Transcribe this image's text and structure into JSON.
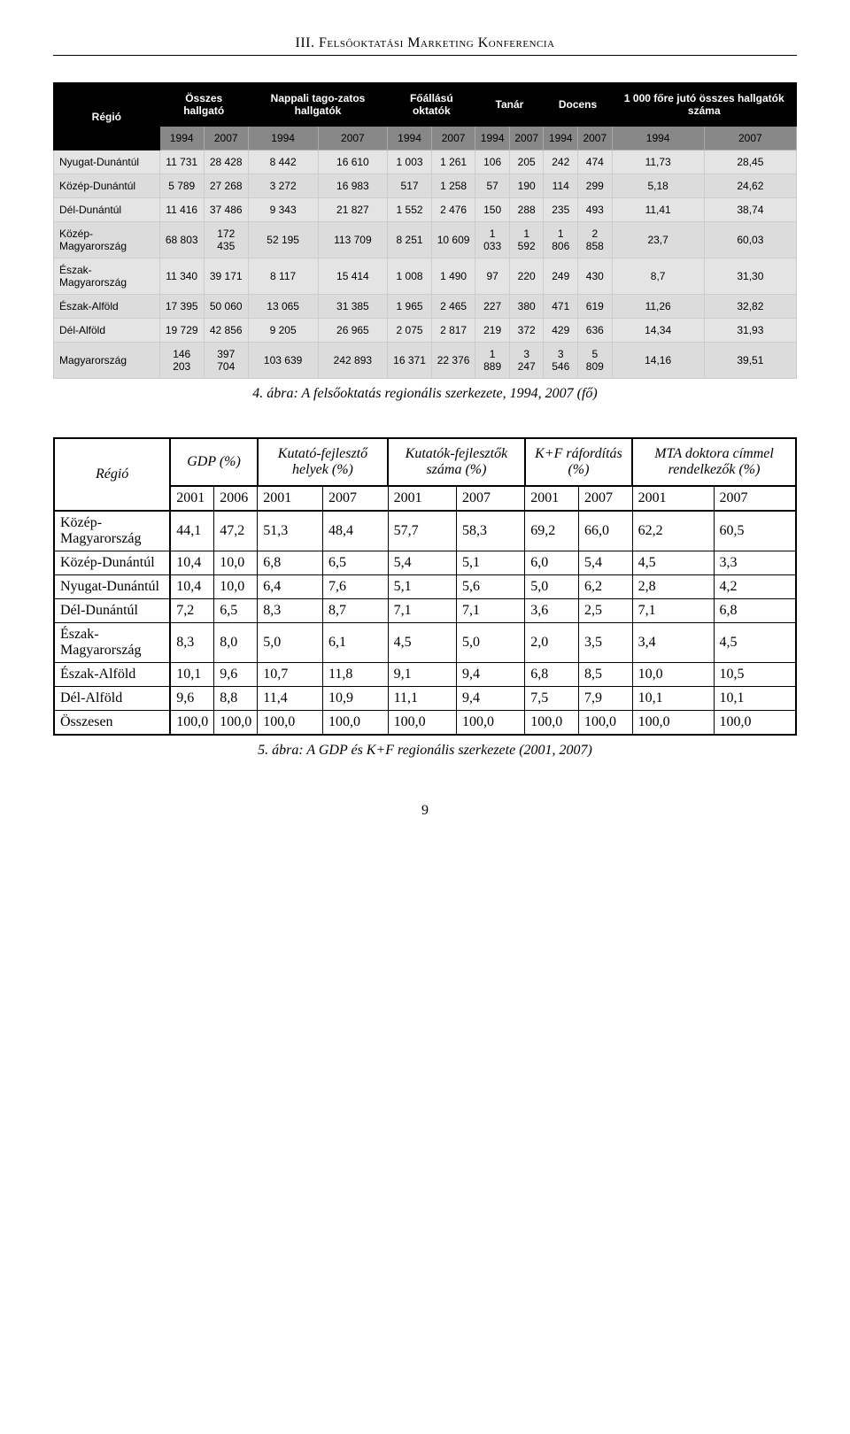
{
  "header": "III. Felsőoktatási Marketing Konferencia",
  "table1": {
    "col_region": "Régió",
    "groups": [
      "Összes hallgató",
      "Nappali tago-zatos hallgatók",
      "Főállású oktatók",
      "Tanár",
      "Docens",
      "1 000 főre jutó összes hallgatók száma"
    ],
    "years": [
      "1994",
      "2007",
      "1994",
      "2007",
      "1994",
      "2007",
      "1994",
      "2007",
      "1994",
      "2007",
      "1994",
      "2007"
    ],
    "rows": [
      {
        "region": "Nyugat-Dunántúl",
        "cells": [
          "11 731",
          "28 428",
          "8 442",
          "16 610",
          "1 003",
          "1 261",
          "106",
          "205",
          "242",
          "474",
          "11,73",
          "28,45"
        ]
      },
      {
        "region": "Közép-Dunántúl",
        "cells": [
          "5 789",
          "27 268",
          "3 272",
          "16 983",
          "517",
          "1 258",
          "57",
          "190",
          "114",
          "299",
          "5,18",
          "24,62"
        ]
      },
      {
        "region": "Dél-Dunántúl",
        "cells": [
          "11 416",
          "37 486",
          "9 343",
          "21 827",
          "1 552",
          "2 476",
          "150",
          "288",
          "235",
          "493",
          "11,41",
          "38,74"
        ]
      },
      {
        "region": "Közép-Magyarország",
        "cells": [
          "68 803",
          "172 435",
          "52 195",
          "113 709",
          "8 251",
          "10 609",
          "1 033",
          "1 592",
          "1 806",
          "2 858",
          "23,7",
          "60,03"
        ]
      },
      {
        "region": "Észak-Magyarország",
        "cells": [
          "11 340",
          "39 171",
          "8 117",
          "15 414",
          "1 008",
          "1 490",
          "97",
          "220",
          "249",
          "430",
          "8,7",
          "31,30"
        ]
      },
      {
        "region": "Észak-Alföld",
        "cells": [
          "17 395",
          "50 060",
          "13 065",
          "31 385",
          "1 965",
          "2 465",
          "227",
          "380",
          "471",
          "619",
          "11,26",
          "32,82"
        ]
      },
      {
        "region": "Dél-Alföld",
        "cells": [
          "19 729",
          "42 856",
          "9 205",
          "26 965",
          "2 075",
          "2 817",
          "219",
          "372",
          "429",
          "636",
          "14,34",
          "31,93"
        ]
      },
      {
        "region": "Magyarország",
        "cells": [
          "146 203",
          "397 704",
          "103 639",
          "242 893",
          "16 371",
          "22 376",
          "1 889",
          "3 247",
          "3 546",
          "5 809",
          "14,16",
          "39,51"
        ]
      }
    ],
    "caption": "4. ábra: A felsőoktatás regionális szerkezete, 1994, 2007 (fő)",
    "header_bg": "#000000",
    "header_fg": "#ffffff",
    "year_bg": "#888888",
    "cell_bg": "#dcdcdc"
  },
  "table2": {
    "col_region": "Régió",
    "headers": [
      "GDP (%)",
      "Kutató-fejlesztő helyek (%)",
      "Kutatók-fejlesztők száma (%)",
      "K+F ráfordítás (%)",
      "MTA doktora címmel rendelkezők (%)"
    ],
    "years": [
      "2001",
      "2006",
      "2001",
      "2007",
      "2001",
      "2007",
      "2001",
      "2007",
      "2001",
      "2007"
    ],
    "rows": [
      {
        "region": "Közép-Magyarország",
        "cells": [
          "44,1",
          "47,2",
          "51,3",
          "48,4",
          "57,7",
          "58,3",
          "69,2",
          "66,0",
          "62,2",
          "60,5"
        ]
      },
      {
        "region": "Közép-Dunántúl",
        "cells": [
          "10,4",
          "10,0",
          "6,8",
          "6,5",
          "5,4",
          "5,1",
          "6,0",
          "5,4",
          "4,5",
          "3,3"
        ]
      },
      {
        "region": "Nyugat-Dunántúl",
        "cells": [
          "10,4",
          "10,0",
          "6,4",
          "7,6",
          "5,1",
          "5,6",
          "5,0",
          "6,2",
          "2,8",
          "4,2"
        ]
      },
      {
        "region": "Dél-Dunántúl",
        "cells": [
          "7,2",
          "6,5",
          "8,3",
          "8,7",
          "7,1",
          "7,1",
          "3,6",
          "2,5",
          "7,1",
          "6,8"
        ]
      },
      {
        "region": "Észak-Magyarország",
        "cells": [
          "8,3",
          "8,0",
          "5,0",
          "6,1",
          "4,5",
          "5,0",
          "2,0",
          "3,5",
          "3,4",
          "4,5"
        ]
      },
      {
        "region": "Észak-Alföld",
        "cells": [
          "10,1",
          "9,6",
          "10,7",
          "11,8",
          "9,1",
          "9,4",
          "6,8",
          "8,5",
          "10,0",
          "10,5"
        ]
      },
      {
        "region": "Dél-Alföld",
        "cells": [
          "9,6",
          "8,8",
          "11,4",
          "10,9",
          "11,1",
          "9,4",
          "7,5",
          "7,9",
          "10,1",
          "10,1"
        ]
      },
      {
        "region": "Összesen",
        "cells": [
          "100,0",
          "100,0",
          "100,0",
          "100,0",
          "100,0",
          "100,0",
          "100,0",
          "100,0",
          "100,0",
          "100,0"
        ]
      }
    ],
    "caption": "5. ábra: A GDP és K+F regionális szerkezete (2001, 2007)"
  },
  "pagenum": "9"
}
